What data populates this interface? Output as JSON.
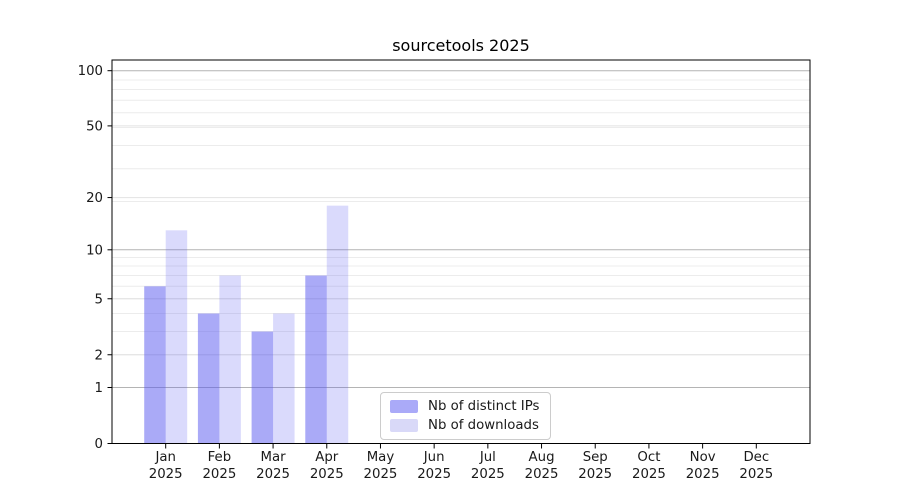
{
  "chart_data": {
    "type": "bar",
    "title": "sourcetools 2025",
    "categories": [
      "Jan 2025",
      "Feb 2025",
      "Mar 2025",
      "Apr 2025",
      "May 2025",
      "Jun 2025",
      "Jul 2025",
      "Aug 2025",
      "Sep 2025",
      "Oct 2025",
      "Nov 2025",
      "Dec 2025"
    ],
    "series": [
      {
        "name": "Nb of distinct IPs",
        "color": "#5555f0",
        "fill_opacity": 0.5,
        "legend_swatch_color": "#aaaaf8",
        "values": [
          6,
          4,
          3,
          7,
          0,
          0,
          0,
          0,
          0,
          0,
          0,
          0
        ]
      },
      {
        "name": "Nb of downloads",
        "color": "#5555f0",
        "fill_opacity": 0.22,
        "legend_swatch_color": "#d9d9f8",
        "values": [
          13,
          7,
          4,
          18,
          0,
          0,
          0,
          0,
          0,
          0,
          0,
          0
        ]
      }
    ],
    "xlabel": "",
    "ylabel": "",
    "y_scale": "log1p",
    "y_ticks": [
      0,
      1,
      2,
      5,
      10,
      20,
      50,
      100
    ],
    "y_major_gridline_ticks": [
      1,
      10,
      100
    ],
    "ylim": [
      0,
      115
    ],
    "grid": true,
    "legend_position": "lower-center-inside",
    "colors": {
      "background": "#ffffff",
      "axis": "#000000",
      "text": "#1a1a1a",
      "grid_major": "#b4b4b4",
      "grid_tick": "#e2e2e2",
      "grid_minor": "#ececec"
    }
  }
}
